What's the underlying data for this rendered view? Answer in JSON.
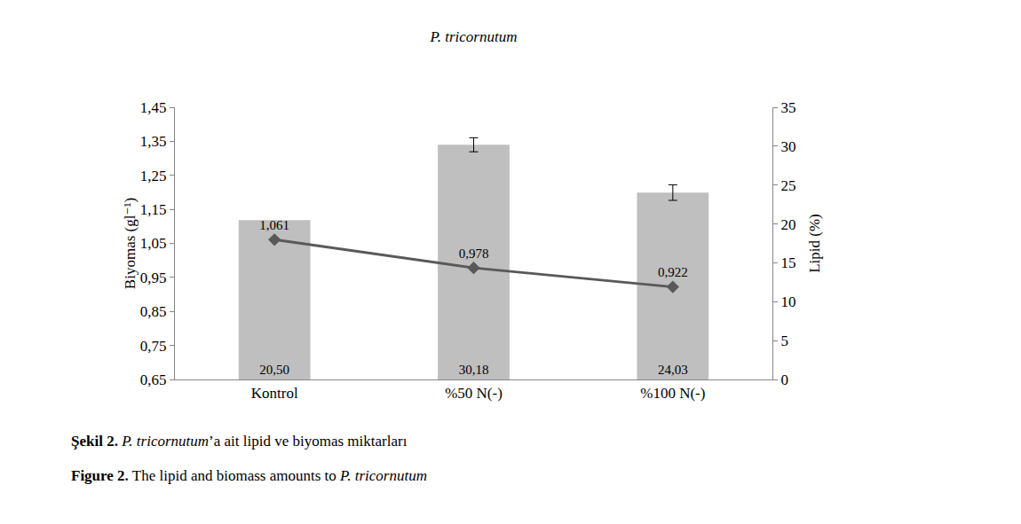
{
  "chart_data": {
    "type": "bar",
    "title": "P. tricornutum",
    "categories": [
      "Kontrol",
      "%50 N(-)",
      "%100 N(-)"
    ],
    "y_label": "Biyomas (gl⁻¹)",
    "y2_label": "Lipid (%)",
    "ylim": [
      0.65,
      1.45
    ],
    "yticks": [
      {
        "value": 0.65,
        "label": "0,65"
      },
      {
        "value": 0.75,
        "label": "0,75"
      },
      {
        "value": 0.85,
        "label": "0,85"
      },
      {
        "value": 0.95,
        "label": "0,95"
      },
      {
        "value": 1.05,
        "label": "1,05"
      },
      {
        "value": 1.15,
        "label": "1,15"
      },
      {
        "value": 1.25,
        "label": "1,25"
      },
      {
        "value": 1.35,
        "label": "1,35"
      },
      {
        "value": 1.45,
        "label": "1,45"
      }
    ],
    "y2lim": [
      0,
      35
    ],
    "y2ticks": [
      0,
      5,
      10,
      15,
      20,
      25,
      30,
      35
    ],
    "grid": false,
    "data_labels": true,
    "series": [
      {
        "name": "Lipid (%)",
        "type": "bar",
        "axis": "y2",
        "color": "#bfbfbf",
        "values": [
          20.5,
          30.18,
          24.03
        ],
        "value_labels": [
          "20,50",
          "30,18",
          "24,03"
        ],
        "errors": [
          null,
          0.9,
          1.0
        ]
      },
      {
        "name": "Biyomas (gl⁻¹)",
        "type": "line",
        "color": "#595959",
        "marker": "diamond",
        "values": [
          1.061,
          0.978,
          0.922
        ],
        "value_labels": [
          "1,061",
          "0,978",
          "0,922"
        ]
      }
    ],
    "captions": [
      {
        "label": "Şekil 2.",
        "text": "P. tricornutum’a ait lipid ve biyomas miktarları"
      },
      {
        "label": "Figure 2.",
        "text": "The lipid and biomass amounts to P. tricornutum"
      }
    ]
  }
}
